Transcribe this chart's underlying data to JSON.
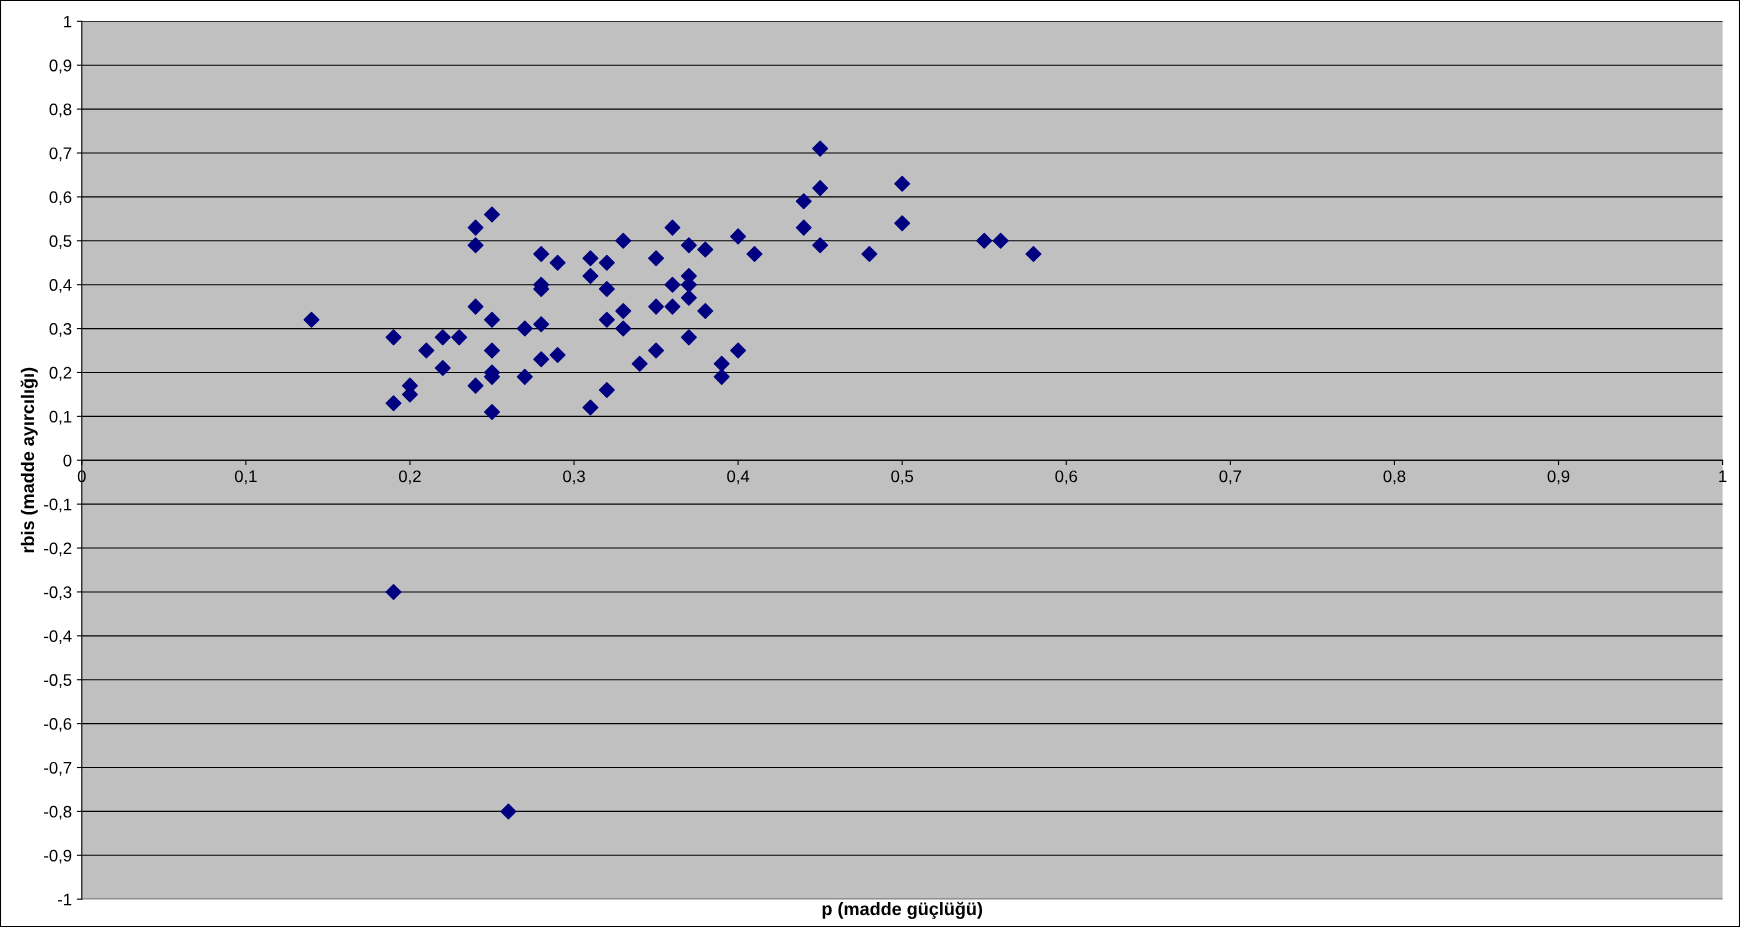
{
  "chart_data": {
    "type": "scatter",
    "xlabel": "p (madde güçlüğü)",
    "ylabel": "rbis (madde ayırcılığı)",
    "x": [
      0.14,
      0.19,
      0.19,
      0.21,
      0.2,
      0.2,
      0.22,
      0.22,
      0.23,
      0.24,
      0.24,
      0.24,
      0.24,
      0.25,
      0.25,
      0.25,
      0.25,
      0.25,
      0.25,
      0.27,
      0.27,
      0.28,
      0.28,
      0.28,
      0.28,
      0.28,
      0.29,
      0.29,
      0.31,
      0.31,
      0.31,
      0.32,
      0.32,
      0.32,
      0.32,
      0.33,
      0.33,
      0.33,
      0.34,
      0.35,
      0.35,
      0.35,
      0.36,
      0.36,
      0.36,
      0.37,
      0.37,
      0.37,
      0.37,
      0.37,
      0.38,
      0.38,
      0.39,
      0.39,
      0.4,
      0.4,
      0.41,
      0.44,
      0.44,
      0.45,
      0.45,
      0.45,
      0.48,
      0.5,
      0.5,
      0.55,
      0.56,
      0.58,
      0.19,
      0.26
    ],
    "series": [
      {
        "color": "#000080",
        "values": [
          0.32,
          0.28,
          0.13,
          0.25,
          0.17,
          0.15,
          0.28,
          0.21,
          0.28,
          0.53,
          0.49,
          0.35,
          0.17,
          0.56,
          0.32,
          0.25,
          0.2,
          0.19,
          0.11,
          0.3,
          0.19,
          0.47,
          0.4,
          0.39,
          0.31,
          0.23,
          0.45,
          0.24,
          0.46,
          0.42,
          0.12,
          0.45,
          0.39,
          0.32,
          0.16,
          0.5,
          0.34,
          0.3,
          0.22,
          0.46,
          0.35,
          0.25,
          0.53,
          0.4,
          0.35,
          0.49,
          0.42,
          0.4,
          0.37,
          0.28,
          0.48,
          0.34,
          0.22,
          0.19,
          0.51,
          0.25,
          0.47,
          0.59,
          0.53,
          0.71,
          0.62,
          0.49,
          0.47,
          0.63,
          0.54,
          0.5,
          0.5,
          0.47,
          -0.3,
          -0.8
        ]
      }
    ],
    "xlim": [
      0,
      1
    ],
    "ylim": [
      -1,
      1
    ],
    "xticks": [
      0,
      {
        "value": 0.1,
        "label": "0,1"
      },
      {
        "value": 0.2,
        "label": "0,2"
      },
      {
        "value": 0.3,
        "label": "0,3"
      },
      {
        "value": 0.4,
        "label": "0,4"
      },
      {
        "value": 0.5,
        "label": "0,5"
      },
      {
        "value": 0.6,
        "label": "0,6"
      },
      {
        "value": 0.7,
        "label": "0,7"
      },
      {
        "value": 0.8,
        "label": "0,8"
      },
      {
        "value": 0.9,
        "label": "0,9"
      },
      1
    ],
    "yticks": [
      -1,
      {
        "value": -0.9,
        "label": "-0,9"
      },
      {
        "value": -0.8,
        "label": "-0,8"
      },
      {
        "value": -0.7,
        "label": "-0,7"
      },
      {
        "value": -0.6,
        "label": "-0,6"
      },
      {
        "value": -0.5,
        "label": "-0,5"
      },
      {
        "value": -0.4,
        "label": "-0,4"
      },
      {
        "value": -0.3,
        "label": "-0,3"
      },
      {
        "value": -0.2,
        "label": "-0,2"
      },
      {
        "value": -0.1,
        "label": "-0,1"
      },
      0,
      {
        "value": 0.1,
        "label": "0,1"
      },
      {
        "value": 0.2,
        "label": "0,2"
      },
      {
        "value": 0.3,
        "label": "0,3"
      },
      {
        "value": 0.4,
        "label": "0,4"
      },
      {
        "value": 0.5,
        "label": "0,5"
      },
      {
        "value": 0.6,
        "label": "0,6"
      },
      {
        "value": 0.7,
        "label": "0,7"
      },
      {
        "value": 0.8,
        "label": "0,8"
      },
      {
        "value": 0.9,
        "label": "0,9"
      },
      1
    ],
    "grid": "y",
    "marker": "diamond"
  }
}
